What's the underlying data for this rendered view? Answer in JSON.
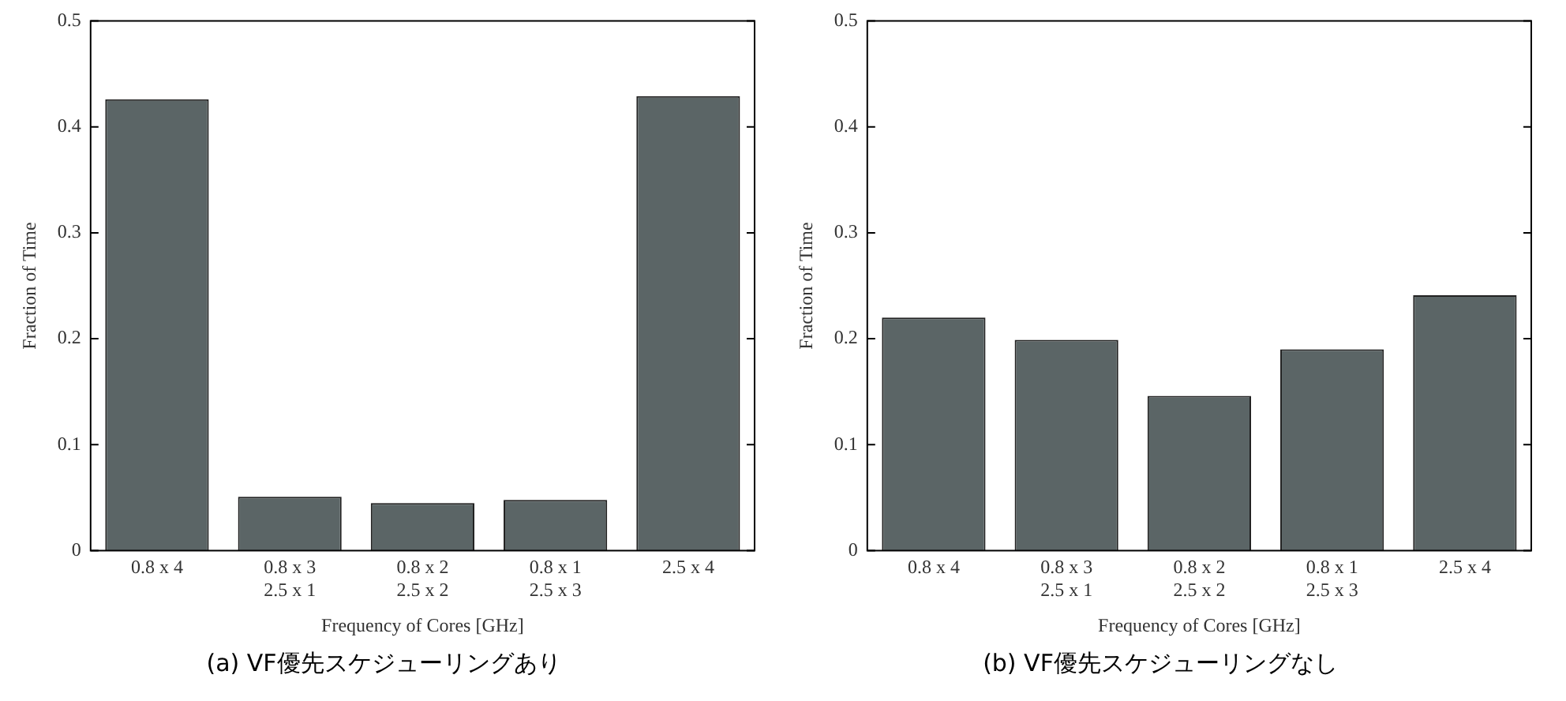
{
  "chart_data": [
    {
      "type": "bar",
      "title": "(a) VF優先スケジューリングあり",
      "xlabel": "Frequency of Cores [GHz]",
      "ylabel": "Fraction of Time",
      "categories": [
        "0.8 x 4",
        "0.8 x 3\n2.5 x 1",
        "0.8 x 2\n2.5 x 2",
        "0.8 x 1\n2.5 x 3",
        "2.5 x 4"
      ],
      "values": [
        0.426,
        0.051,
        0.045,
        0.048,
        0.429
      ],
      "color": "#5b6566",
      "ylim": [
        0,
        0.5
      ],
      "yticks": [
        0,
        0.1,
        0.2,
        0.3,
        0.4,
        0.5
      ],
      "grid": false,
      "legend": false
    },
    {
      "type": "bar",
      "title": "(b) VF優先スケジューリングなし",
      "xlabel": "Frequency of Cores [GHz]",
      "ylabel": "Fraction of Time",
      "categories": [
        "0.8 x 4",
        "0.8 x 3\n2.5 x 1",
        "0.8 x 2\n2.5 x 2",
        "0.8 x 1\n2.5 x 3",
        "2.5 x 4"
      ],
      "values": [
        0.22,
        0.199,
        0.146,
        0.19,
        0.241
      ],
      "color": "#5b6566",
      "ylim": [
        0,
        0.5
      ],
      "yticks": [
        0,
        0.1,
        0.2,
        0.3,
        0.4,
        0.5
      ],
      "grid": false,
      "legend": false
    }
  ]
}
